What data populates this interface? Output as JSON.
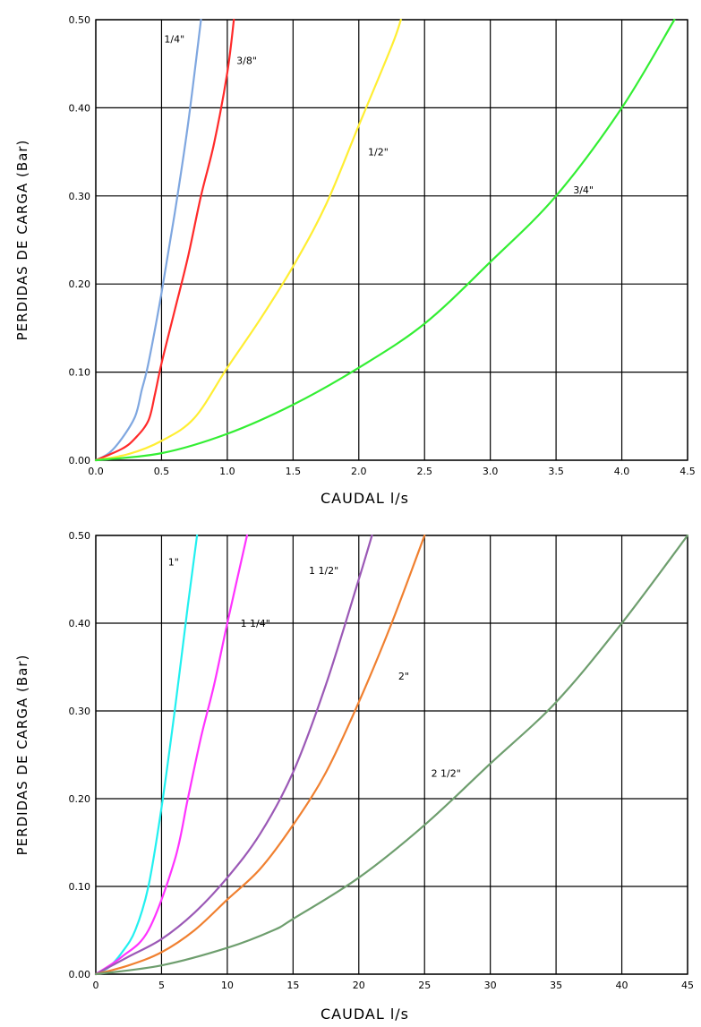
{
  "chart_data": [
    {
      "type": "line",
      "title": "",
      "xlabel": "CAUDAL l/s",
      "ylabel": "PERDIDAS DE CARGA (Bar)",
      "xlim": [
        0,
        4.5
      ],
      "ylim": [
        0,
        0.5
      ],
      "x_ticks": [
        "0.0",
        "0.5",
        "1.0",
        "1.5",
        "2.0",
        "2.5",
        "3.0",
        "3.5",
        "4.0",
        "4.5"
      ],
      "y_ticks": [
        "0.00",
        "0.10",
        "0.20",
        "0.30",
        "0.40",
        "0.50"
      ],
      "grid": true,
      "series": [
        {
          "name": "1/4\"",
          "color": "#7fa7e0",
          "label_at": [
            0.52,
            0.478
          ],
          "points": [
            [
              0,
              0
            ],
            [
              0.1,
              0.008
            ],
            [
              0.2,
              0.025
            ],
            [
              0.3,
              0.05
            ],
            [
              0.35,
              0.08
            ],
            [
              0.4,
              0.11
            ],
            [
              0.5,
              0.19
            ],
            [
              0.6,
              0.28
            ],
            [
              0.7,
              0.38
            ],
            [
              0.8,
              0.5
            ]
          ]
        },
        {
          "name": "3/8\"",
          "color": "#ff2a2a",
          "label_at": [
            1.07,
            0.454
          ],
          "points": [
            [
              0,
              0
            ],
            [
              0.2,
              0.013
            ],
            [
              0.3,
              0.025
            ],
            [
              0.4,
              0.045
            ],
            [
              0.45,
              0.075
            ],
            [
              0.5,
              0.11
            ],
            [
              0.6,
              0.17
            ],
            [
              0.7,
              0.23
            ],
            [
              0.8,
              0.3
            ],
            [
              0.9,
              0.36
            ],
            [
              1.0,
              0.44
            ],
            [
              1.05,
              0.5
            ]
          ]
        },
        {
          "name": "1/2\"",
          "color": "#ffee33",
          "label_at": [
            2.07,
            0.35
          ],
          "points": [
            [
              0,
              0
            ],
            [
              0.25,
              0.007
            ],
            [
              0.5,
              0.022
            ],
            [
              0.75,
              0.048
            ],
            [
              1.0,
              0.105
            ],
            [
              1.25,
              0.16
            ],
            [
              1.5,
              0.22
            ],
            [
              1.75,
              0.29
            ],
            [
              2.0,
              0.38
            ],
            [
              2.25,
              0.47
            ],
            [
              2.32,
              0.5
            ]
          ]
        },
        {
          "name": "3/4\"",
          "color": "#33ee33",
          "label_at": [
            3.63,
            0.307
          ],
          "points": [
            [
              0,
              0
            ],
            [
              0.5,
              0.008
            ],
            [
              1.0,
              0.03
            ],
            [
              1.5,
              0.063
            ],
            [
              2.0,
              0.105
            ],
            [
              2.5,
              0.155
            ],
            [
              3.0,
              0.225
            ],
            [
              3.5,
              0.3
            ],
            [
              4.0,
              0.4
            ],
            [
              4.4,
              0.5
            ]
          ]
        }
      ]
    },
    {
      "type": "line",
      "title": "",
      "xlabel": "CAUDAL l/s",
      "ylabel": "PERDIDAS DE CARGA (Bar)",
      "xlim": [
        0,
        45
      ],
      "ylim": [
        0,
        0.5
      ],
      "x_ticks": [
        "0",
        "5",
        "10",
        "15",
        "20",
        "25",
        "30",
        "35",
        "40",
        "45"
      ],
      "y_ticks": [
        "0.00",
        "0.10",
        "0.20",
        "0.30",
        "0.40",
        "0.50"
      ],
      "grid": true,
      "series": [
        {
          "name": "1\"",
          "color": "#22f0f0",
          "label_at": [
            5.5,
            0.47
          ],
          "points": [
            [
              0,
              0
            ],
            [
              1,
              0.008
            ],
            [
              2,
              0.025
            ],
            [
              3,
              0.05
            ],
            [
              4,
              0.1
            ],
            [
              5,
              0.19
            ],
            [
              6,
              0.3
            ],
            [
              7,
              0.42
            ],
            [
              7.7,
              0.5
            ]
          ]
        },
        {
          "name": "1 1/4\"",
          "color": "#ff33ff",
          "label_at": [
            11,
            0.4
          ],
          "points": [
            [
              0,
              0
            ],
            [
              2,
              0.02
            ],
            [
              4,
              0.05
            ],
            [
              6,
              0.13
            ],
            [
              7,
              0.2
            ],
            [
              8,
              0.27
            ],
            [
              9,
              0.33
            ],
            [
              10,
              0.4
            ],
            [
              11.5,
              0.5
            ]
          ]
        },
        {
          "name": "1 1/2\"",
          "color": "#9b59b6",
          "label_at": [
            16.2,
            0.46
          ],
          "points": [
            [
              0,
              0
            ],
            [
              2.5,
              0.02
            ],
            [
              5,
              0.04
            ],
            [
              7.5,
              0.07
            ],
            [
              10,
              0.11
            ],
            [
              12.5,
              0.16
            ],
            [
              15,
              0.23
            ],
            [
              17.5,
              0.33
            ],
            [
              20,
              0.45
            ],
            [
              21,
              0.5
            ]
          ]
        },
        {
          "name": "2\"",
          "color": "#f08030",
          "label_at": [
            23,
            0.34
          ],
          "points": [
            [
              0,
              0
            ],
            [
              2.5,
              0.01
            ],
            [
              5,
              0.025
            ],
            [
              7.5,
              0.05
            ],
            [
              10,
              0.085
            ],
            [
              12.5,
              0.12
            ],
            [
              15,
              0.17
            ],
            [
              17.5,
              0.23
            ],
            [
              20,
              0.31
            ],
            [
              22.5,
              0.4
            ],
            [
              25,
              0.5
            ]
          ]
        },
        {
          "name": "2 1/2\"",
          "color": "#6e9e6e",
          "label_at": [
            25.5,
            0.229
          ],
          "points": [
            [
              0,
              0
            ],
            [
              5,
              0.01
            ],
            [
              10,
              0.03
            ],
            [
              13.5,
              0.05
            ],
            [
              15,
              0.063
            ],
            [
              20,
              0.11
            ],
            [
              25,
              0.17
            ],
            [
              30,
              0.24
            ],
            [
              35,
              0.31
            ],
            [
              40,
              0.4
            ],
            [
              45,
              0.5
            ]
          ]
        }
      ]
    }
  ]
}
